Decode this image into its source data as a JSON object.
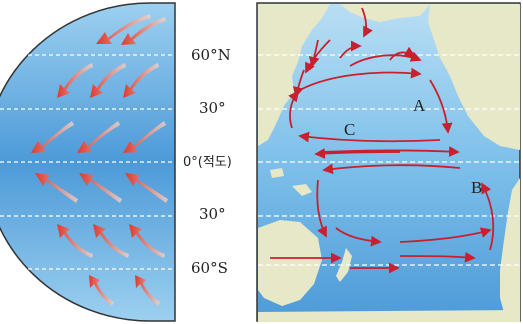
{
  "latitudes": {
    "n60": "60°N",
    "n30": "30°",
    "eq": "0°(적도)",
    "s30": "30°",
    "s60": "60°S"
  },
  "currents": {
    "a": "A",
    "b": "B",
    "c": "C"
  },
  "colors": {
    "ocean": "#8ec6ea",
    "ocean_deep": "#58a4dc",
    "land": "#e6e8c8",
    "wind_arrow": "#e0392b",
    "current_arrow": "#c8202f"
  }
}
